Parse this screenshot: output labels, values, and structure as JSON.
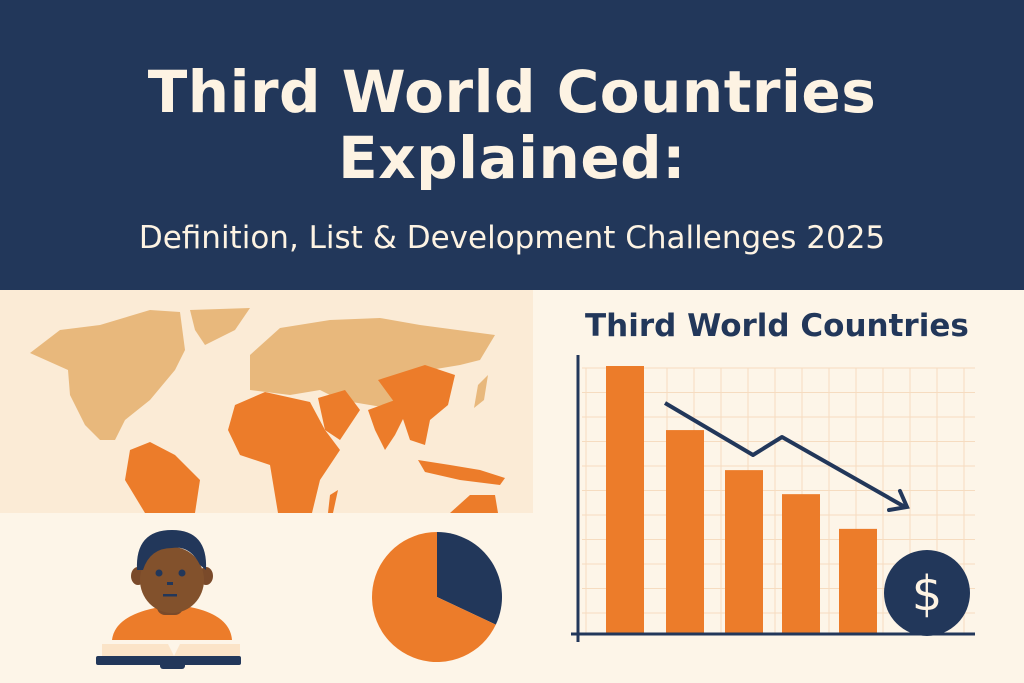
{
  "header": {
    "title_line1": "Third World Countries",
    "title_line2": "Explained:",
    "subtitle": "Definition, List & Development Challenges 2025"
  },
  "colors": {
    "navy": "#22375a",
    "orange": "#ec7c2a",
    "developed_land": "#e8b87c",
    "cream": "#fdf5e8"
  },
  "icons": [
    "world-map",
    "student-reading-book",
    "pie-chart",
    "dollar-coin",
    "downward-trend-arrow"
  ],
  "chart_data": [
    {
      "type": "bar",
      "title": "Third World Countries",
      "values": [
        100,
        76,
        61,
        52,
        39
      ],
      "trend": "downward",
      "grid": true
    },
    {
      "type": "pie",
      "values": [
        32,
        68
      ],
      "colors": [
        "#22375a",
        "#ec7c2a"
      ]
    }
  ]
}
